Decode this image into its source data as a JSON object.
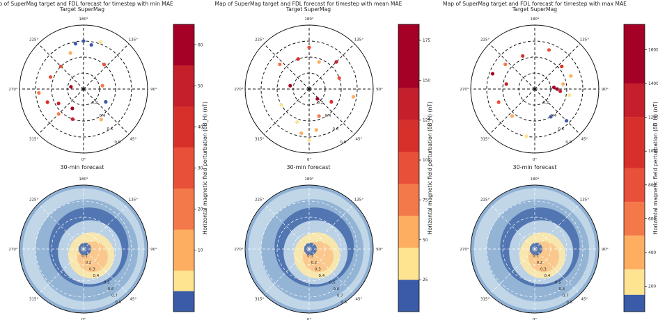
{
  "polar_ticks": {
    "angles": [
      "180°",
      "135°",
      "90°",
      "45°",
      "0°",
      "315°",
      "270°",
      "225°"
    ],
    "radii": [
      "0.1",
      "0.2",
      "0.3",
      "0.4",
      "0.5",
      "0.6",
      "0.7",
      "0.8"
    ]
  },
  "colors": {
    "scale": [
      "#3a5ba8",
      "#fee391",
      "#fdae61",
      "#f4794a",
      "#e8503a",
      "#d7302a",
      "#c41f2a",
      "#a50026"
    ],
    "map_blue_dark": "#4a6fae",
    "map_blue": "#8fb0d4",
    "map_blue_light": "#c6dbea",
    "map_yellow": "#fee8a6",
    "map_orange": "#f9c48a"
  },
  "chart_data": [
    {
      "type": "scatter",
      "panel": "min",
      "title": "Map of SuperMag target and FDL forecast for timestep with min MAE",
      "subtitle": "Target SuperMag",
      "lower_title": "30-min forecast",
      "colorbar": {
        "label": "Horizontal magnetic field perturbation (δB_H) (nT)",
        "range": [
          -5,
          65
        ],
        "ticks": [
          10,
          20,
          30,
          40,
          50,
          60
        ],
        "bounds": [
          -5,
          0,
          5,
          15,
          25,
          35,
          45,
          55,
          65
        ]
      },
      "points": [
        {
          "angle": 180,
          "r": 0.75,
          "value": -3
        },
        {
          "angle": 170,
          "r": 0.7,
          "value": -3
        },
        {
          "angle": 190,
          "r": 0.72,
          "value": -2
        },
        {
          "angle": 160,
          "r": 0.78,
          "value": 2
        },
        {
          "angle": 200,
          "r": 0.6,
          "value": 12
        },
        {
          "angle": 225,
          "r": 0.5,
          "value": 30
        },
        {
          "angle": 250,
          "r": 0.55,
          "value": 28
        },
        {
          "angle": 275,
          "r": 0.7,
          "value": 20
        },
        {
          "angle": 290,
          "r": 0.6,
          "value": 35
        },
        {
          "angle": 300,
          "r": 0.45,
          "value": 48
        },
        {
          "angle": 315,
          "r": 0.55,
          "value": 22
        },
        {
          "angle": 330,
          "r": 0.35,
          "value": 55
        },
        {
          "angle": 340,
          "r": 0.5,
          "value": 45
        },
        {
          "angle": 30,
          "r": 0.55,
          "value": 8
        },
        {
          "angle": 60,
          "r": 0.4,
          "value": -2
        },
        {
          "angle": 100,
          "r": 0.3,
          "value": 18
        },
        {
          "angle": 140,
          "r": 0.5,
          "value": 25
        },
        {
          "angle": 260,
          "r": 0.2,
          "value": 60
        }
      ]
    },
    {
      "type": "scatter",
      "panel": "mean",
      "title": "Map of SuperMag target and FDL forecast for timestep with mean MAE",
      "subtitle": "Target SuperMag",
      "lower_title": "30-min forecast",
      "colorbar": {
        "label": "Horizontal magnetic field perturbation (δB_H) (nT)",
        "range": [
          5,
          185
        ],
        "ticks": [
          25,
          50,
          75,
          100,
          125,
          150,
          175
        ],
        "bounds": [
          5,
          15,
          25,
          45,
          65,
          85,
          105,
          125,
          145,
          185
        ]
      },
      "points": [
        {
          "angle": 0,
          "r": 0.8,
          "value": 40
        },
        {
          "angle": 350,
          "r": 0.7,
          "value": 55
        },
        {
          "angle": 10,
          "r": 0.65,
          "value": 60
        },
        {
          "angle": 340,
          "r": 0.55,
          "value": 35
        },
        {
          "angle": 20,
          "r": 0.45,
          "value": 70
        },
        {
          "angle": 300,
          "r": 0.5,
          "value": 30
        },
        {
          "angle": 60,
          "r": 0.4,
          "value": 120
        },
        {
          "angle": 110,
          "r": 0.5,
          "value": 90
        },
        {
          "angle": 135,
          "r": 0.6,
          "value": 140
        },
        {
          "angle": 160,
          "r": 0.45,
          "value": 60
        },
        {
          "angle": 200,
          "r": 0.5,
          "value": 110
        },
        {
          "angle": 230,
          "r": 0.6,
          "value": 80
        },
        {
          "angle": 260,
          "r": 0.3,
          "value": 160
        },
        {
          "angle": 40,
          "r": 0.2,
          "value": 150
        },
        {
          "angle": 80,
          "r": 0.7,
          "value": 45
        },
        {
          "angle": 180,
          "r": 0.65,
          "value": 100
        }
      ]
    },
    {
      "type": "scatter",
      "panel": "max",
      "title": "Map of SuperMag target and FDL forecast for timestep with max MAE",
      "subtitle": "Target SuperMag",
      "lower_title": "30-min forecast",
      "colorbar": {
        "label": "Horizontal magnetic field perturbation (δB_H) (nT)",
        "range": [
          50,
          1750
        ],
        "ticks": [
          200,
          400,
          600,
          800,
          1000,
          1200,
          1400,
          1600
        ],
        "bounds": [
          50,
          150,
          300,
          500,
          700,
          900,
          1200,
          1400,
          1750
        ]
      },
      "points": [
        {
          "angle": 90,
          "r": 0.35,
          "value": 1500
        },
        {
          "angle": 95,
          "r": 0.3,
          "value": 1450
        },
        {
          "angle": 85,
          "r": 0.4,
          "value": 1300
        },
        {
          "angle": 100,
          "r": 0.45,
          "value": 350
        },
        {
          "angle": 80,
          "r": 0.55,
          "value": 250
        },
        {
          "angle": 110,
          "r": 0.6,
          "value": 300
        },
        {
          "angle": 130,
          "r": 0.55,
          "value": 900
        },
        {
          "angle": 160,
          "r": 0.65,
          "value": 800
        },
        {
          "angle": 200,
          "r": 0.55,
          "value": 1100
        },
        {
          "angle": 230,
          "r": 0.6,
          "value": 600
        },
        {
          "angle": 260,
          "r": 0.45,
          "value": 1250
        },
        {
          "angle": 290,
          "r": 0.6,
          "value": 700
        },
        {
          "angle": 320,
          "r": 0.55,
          "value": 450
        },
        {
          "angle": 350,
          "r": 0.75,
          "value": 200
        },
        {
          "angle": 30,
          "r": 0.5,
          "value": 100
        },
        {
          "angle": 45,
          "r": 0.7,
          "value": 80
        },
        {
          "angle": 250,
          "r": 0.7,
          "value": 1600
        }
      ]
    }
  ]
}
